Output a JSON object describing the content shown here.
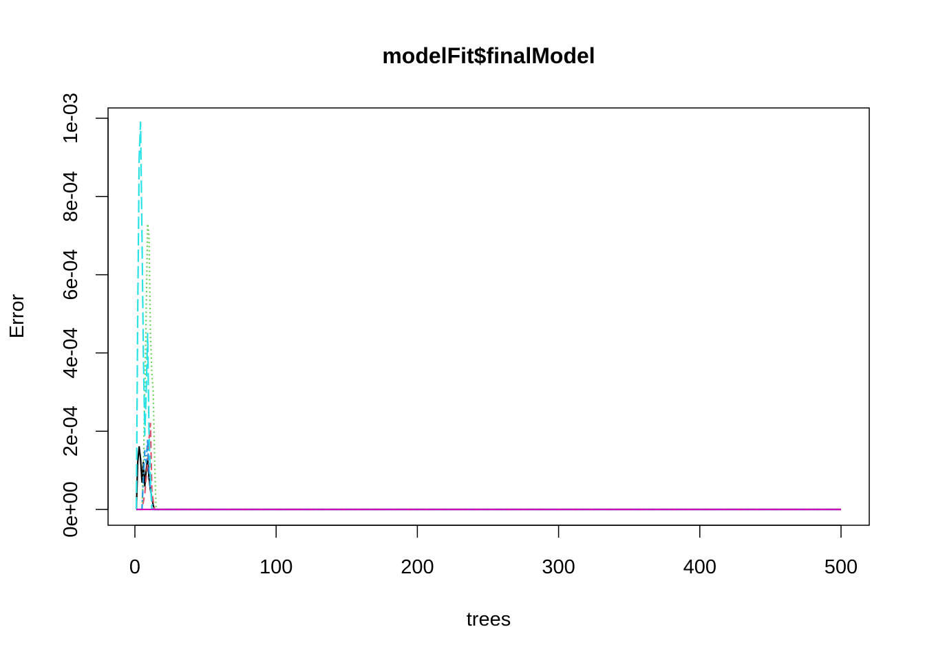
{
  "chart_data": {
    "type": "line",
    "title": "modelFit$finalModel",
    "xlabel": "trees",
    "ylabel": "Error",
    "xlim": [
      0,
      500
    ],
    "ylim": [
      0,
      0.001
    ],
    "xticks": [
      "0",
      "100",
      "200",
      "300",
      "400",
      "500"
    ],
    "yticks": [
      "0e+00",
      "2e-04",
      "4e-04",
      "6e-04",
      "8e-04",
      "1e-03"
    ],
    "grid": false,
    "legend": "none",
    "series": [
      {
        "color": "#000000",
        "dash": "solid",
        "x": [
          1,
          2,
          3,
          4,
          5,
          6,
          7,
          8,
          9,
          10,
          11,
          12,
          13,
          14,
          15,
          20,
          50,
          100,
          200,
          300,
          400,
          500
        ],
        "y": [
          0,
          0.00012,
          0.00016,
          0.00013,
          7e-05,
          0.00012,
          6e-05,
          0.0001,
          0.00013,
          8e-05,
          5e-05,
          3e-05,
          1e-05,
          0,
          0,
          0,
          0,
          0,
          0,
          0,
          0,
          0
        ]
      },
      {
        "color": "#DF536B",
        "dash": "dashed",
        "x": [
          1,
          5,
          7,
          8,
          9,
          10,
          11,
          12,
          13,
          14,
          20,
          100,
          200,
          300,
          400,
          500
        ],
        "y": [
          0,
          0,
          4e-05,
          8e-05,
          0.00012,
          0.00018,
          0.00022,
          5e-05,
          2e-05,
          0,
          0,
          0,
          0,
          0,
          0,
          0
        ]
      },
      {
        "color": "#61D04F",
        "dash": "dotted",
        "x": [
          1,
          5,
          6,
          7,
          8,
          9,
          10,
          11,
          12,
          13,
          14,
          15,
          20,
          100,
          200,
          300,
          400,
          500
        ],
        "y": [
          0,
          0,
          0.0001,
          0.0003,
          0.0005,
          0.00073,
          0.0007,
          0.00045,
          0.00035,
          0.0003,
          0.00012,
          0,
          0,
          0,
          0,
          0,
          0,
          0
        ]
      },
      {
        "color": "#2297E6",
        "dash": "dotdash",
        "x": [
          1,
          5,
          6,
          7,
          8,
          9,
          10,
          11,
          12,
          13,
          20,
          100,
          200,
          300,
          400,
          500
        ],
        "y": [
          0,
          0,
          8e-05,
          0.00015,
          0.00012,
          0.00018,
          0.0001,
          5e-05,
          2e-05,
          0,
          0,
          0,
          0,
          0,
          0,
          0
        ]
      },
      {
        "color": "#28E2E5",
        "dash": "longdash",
        "x": [
          1,
          2,
          3,
          4,
          5,
          6,
          7,
          8,
          9,
          10,
          11,
          12,
          20,
          100,
          200,
          300,
          400,
          500
        ],
        "y": [
          0,
          0.0005,
          0.0009,
          0.00099,
          0.0007,
          0.0004,
          0.00019,
          0.0003,
          0.00045,
          0.0002,
          8e-05,
          0,
          0,
          0,
          0,
          0,
          0,
          0
        ]
      },
      {
        "color": "#CD0BBC",
        "dash": "solid",
        "x": [
          1,
          500
        ],
        "y": [
          0,
          0
        ]
      }
    ]
  }
}
